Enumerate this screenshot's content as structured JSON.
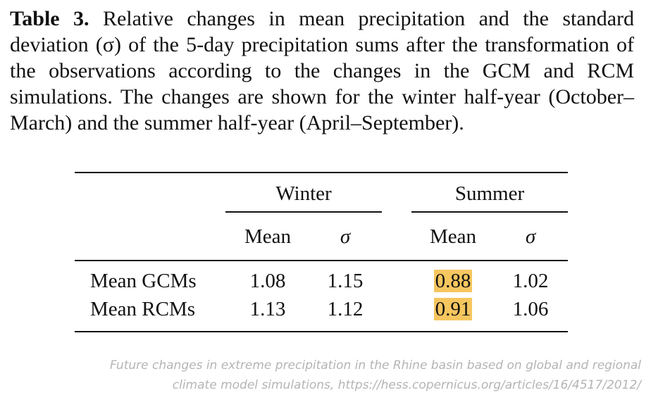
{
  "caption": {
    "label": "Table 3.",
    "text": "Relative changes in mean precipitation and the standard deviation (σ) of the 5-day precipitation sums after the transformation of the observations according to the changes in the GCM and RCM simulations. The changes are shown for the winter half-year (October–March) and the summer half-year (April–September)."
  },
  "table": {
    "groups": [
      "Winter",
      "Summer"
    ],
    "subheaders": [
      "Mean",
      "σ",
      "Mean",
      "σ"
    ],
    "rows": [
      {
        "label": "Mean GCMs",
        "values": [
          "1.08",
          "1.15",
          "0.88",
          "1.02"
        ]
      },
      {
        "label": "Mean RCMs",
        "values": [
          "1.13",
          "1.12",
          "0.91",
          "1.06"
        ]
      }
    ],
    "highlight_color": "#f6c65f"
  },
  "source": {
    "line1": "Future changes in extreme precipitation in the Rhine basin based on global and regional",
    "line2": "climate model simulations, https://hess.copernicus.org/articles/16/4517/2012/"
  }
}
